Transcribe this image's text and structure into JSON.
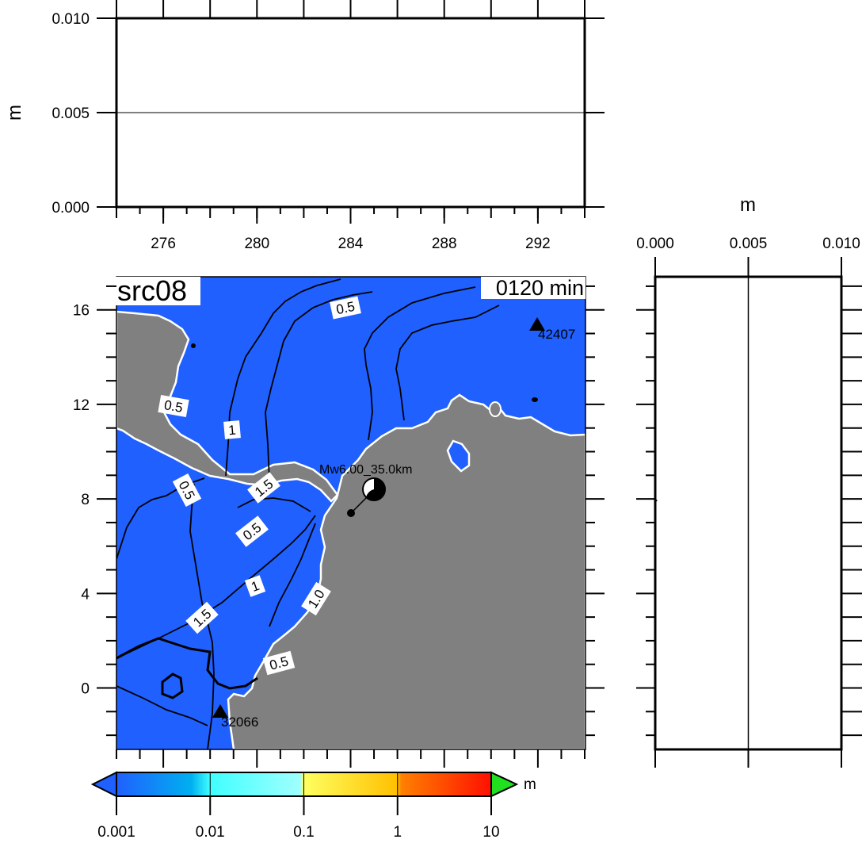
{
  "chart_data": [
    {
      "type": "line",
      "panel": "top-profile",
      "ylabel": "m",
      "ylim": [
        0.0,
        0.01
      ],
      "xlim": [
        274,
        294
      ],
      "yticks": [
        "0.000",
        "0.005",
        "0.010"
      ],
      "xticks": [
        "276",
        "280",
        "284",
        "288",
        "292"
      ],
      "series": [
        {
          "x": [
            274,
            294
          ],
          "y": [
            0.005,
            0.005
          ]
        }
      ]
    },
    {
      "type": "heatmap",
      "panel": "map",
      "title": "src08",
      "time_label": "0120 min",
      "xlim": [
        274,
        294
      ],
      "ylim": [
        -2.6,
        17.4
      ],
      "yticks": [
        "0",
        "4",
        "8",
        "12",
        "16"
      ],
      "contour_labels": [
        "0.5",
        "0.5",
        "1",
        "0.5",
        "1.5",
        "0.5",
        "1",
        "1.5",
        "1.0",
        "0.5"
      ],
      "stations": [
        {
          "id": "42407",
          "lon": 292,
          "lat": 15.4
        },
        {
          "id": "32066",
          "lon": 278.4,
          "lat": -1.0
        }
      ],
      "earthquake": {
        "label": "Mw6.00_35.0km",
        "lon": 284,
        "lat": 7.4
      },
      "colorbar": {
        "unit": "m",
        "scale": "log",
        "ticks": [
          "0.001",
          "0.01",
          "0.1",
          "1",
          "10"
        ],
        "colors": [
          "#2060ff",
          "#00b0f0",
          "#40ffff",
          "#ffff60",
          "#ffc000",
          "#ff7000",
          "#ff1000",
          "#20e020"
        ]
      },
      "colors": {
        "ocean": "#2060ff",
        "land": "#808080"
      }
    },
    {
      "type": "line",
      "panel": "right-profile",
      "xlabel": "m",
      "xlim": [
        0.0,
        0.01
      ],
      "xticks": [
        "0.000",
        "0.005",
        "0.010"
      ],
      "ylim": [
        -2.6,
        17.4
      ],
      "series": [
        {
          "x": [
            0.005,
            0.005
          ],
          "y": [
            -2.6,
            17.4
          ]
        }
      ]
    }
  ]
}
